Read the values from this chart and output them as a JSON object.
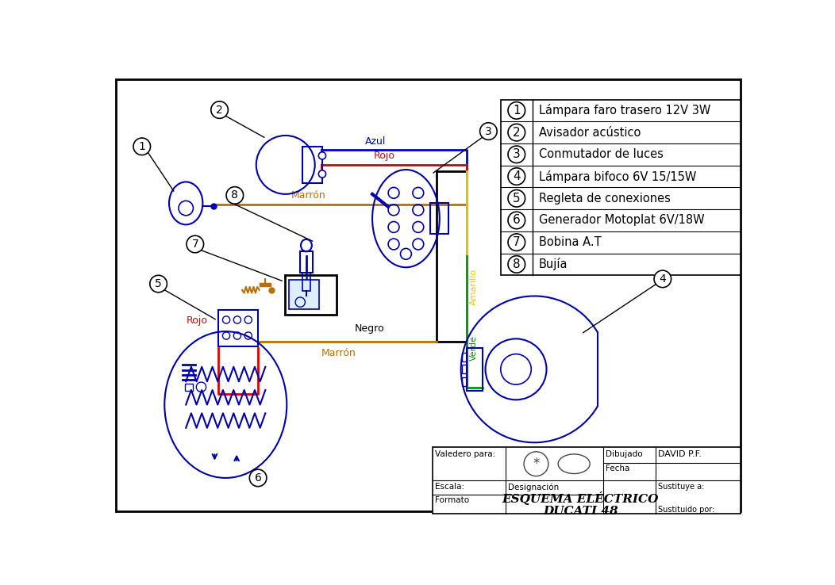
{
  "bg_color": "#ffffff",
  "legend_items": [
    {
      "num": "1",
      "text": "Lámpara faro trasero 12V 3W"
    },
    {
      "num": "2",
      "text": "Avisador acústico"
    },
    {
      "num": "3",
      "text": "Conmutador de luces"
    },
    {
      "num": "4",
      "text": "Lámpara bifoco 6V 15/15W"
    },
    {
      "num": "5",
      "text": "Regleta de conexiones"
    },
    {
      "num": "6",
      "text": "Generador Motoplat 6V/18W"
    },
    {
      "num": "7",
      "text": "Bobina A.T"
    },
    {
      "num": "8",
      "text": "Bujía"
    }
  ],
  "wire_colors": {
    "azul": "#0000cc",
    "rojo": "#dd0000",
    "marron": "#b87000",
    "negro": "#000000",
    "verde": "#009900",
    "amarillo": "#eecc00"
  },
  "comp_color": "#0000aa",
  "footer": {
    "valedero": "Valedero para:",
    "dibujado": "Dibujado",
    "dibujado_val": "DAVID P.F.",
    "fecha": "Fecha",
    "escala": "Escala:",
    "designacion": "Designación",
    "title_main": "ESQUEMA ELÉCTRICO",
    "title_sub": "DUCATI 48",
    "formato": "Formato",
    "sustituye": "Sustituye a:",
    "sustituido": "Sustituido por:"
  }
}
